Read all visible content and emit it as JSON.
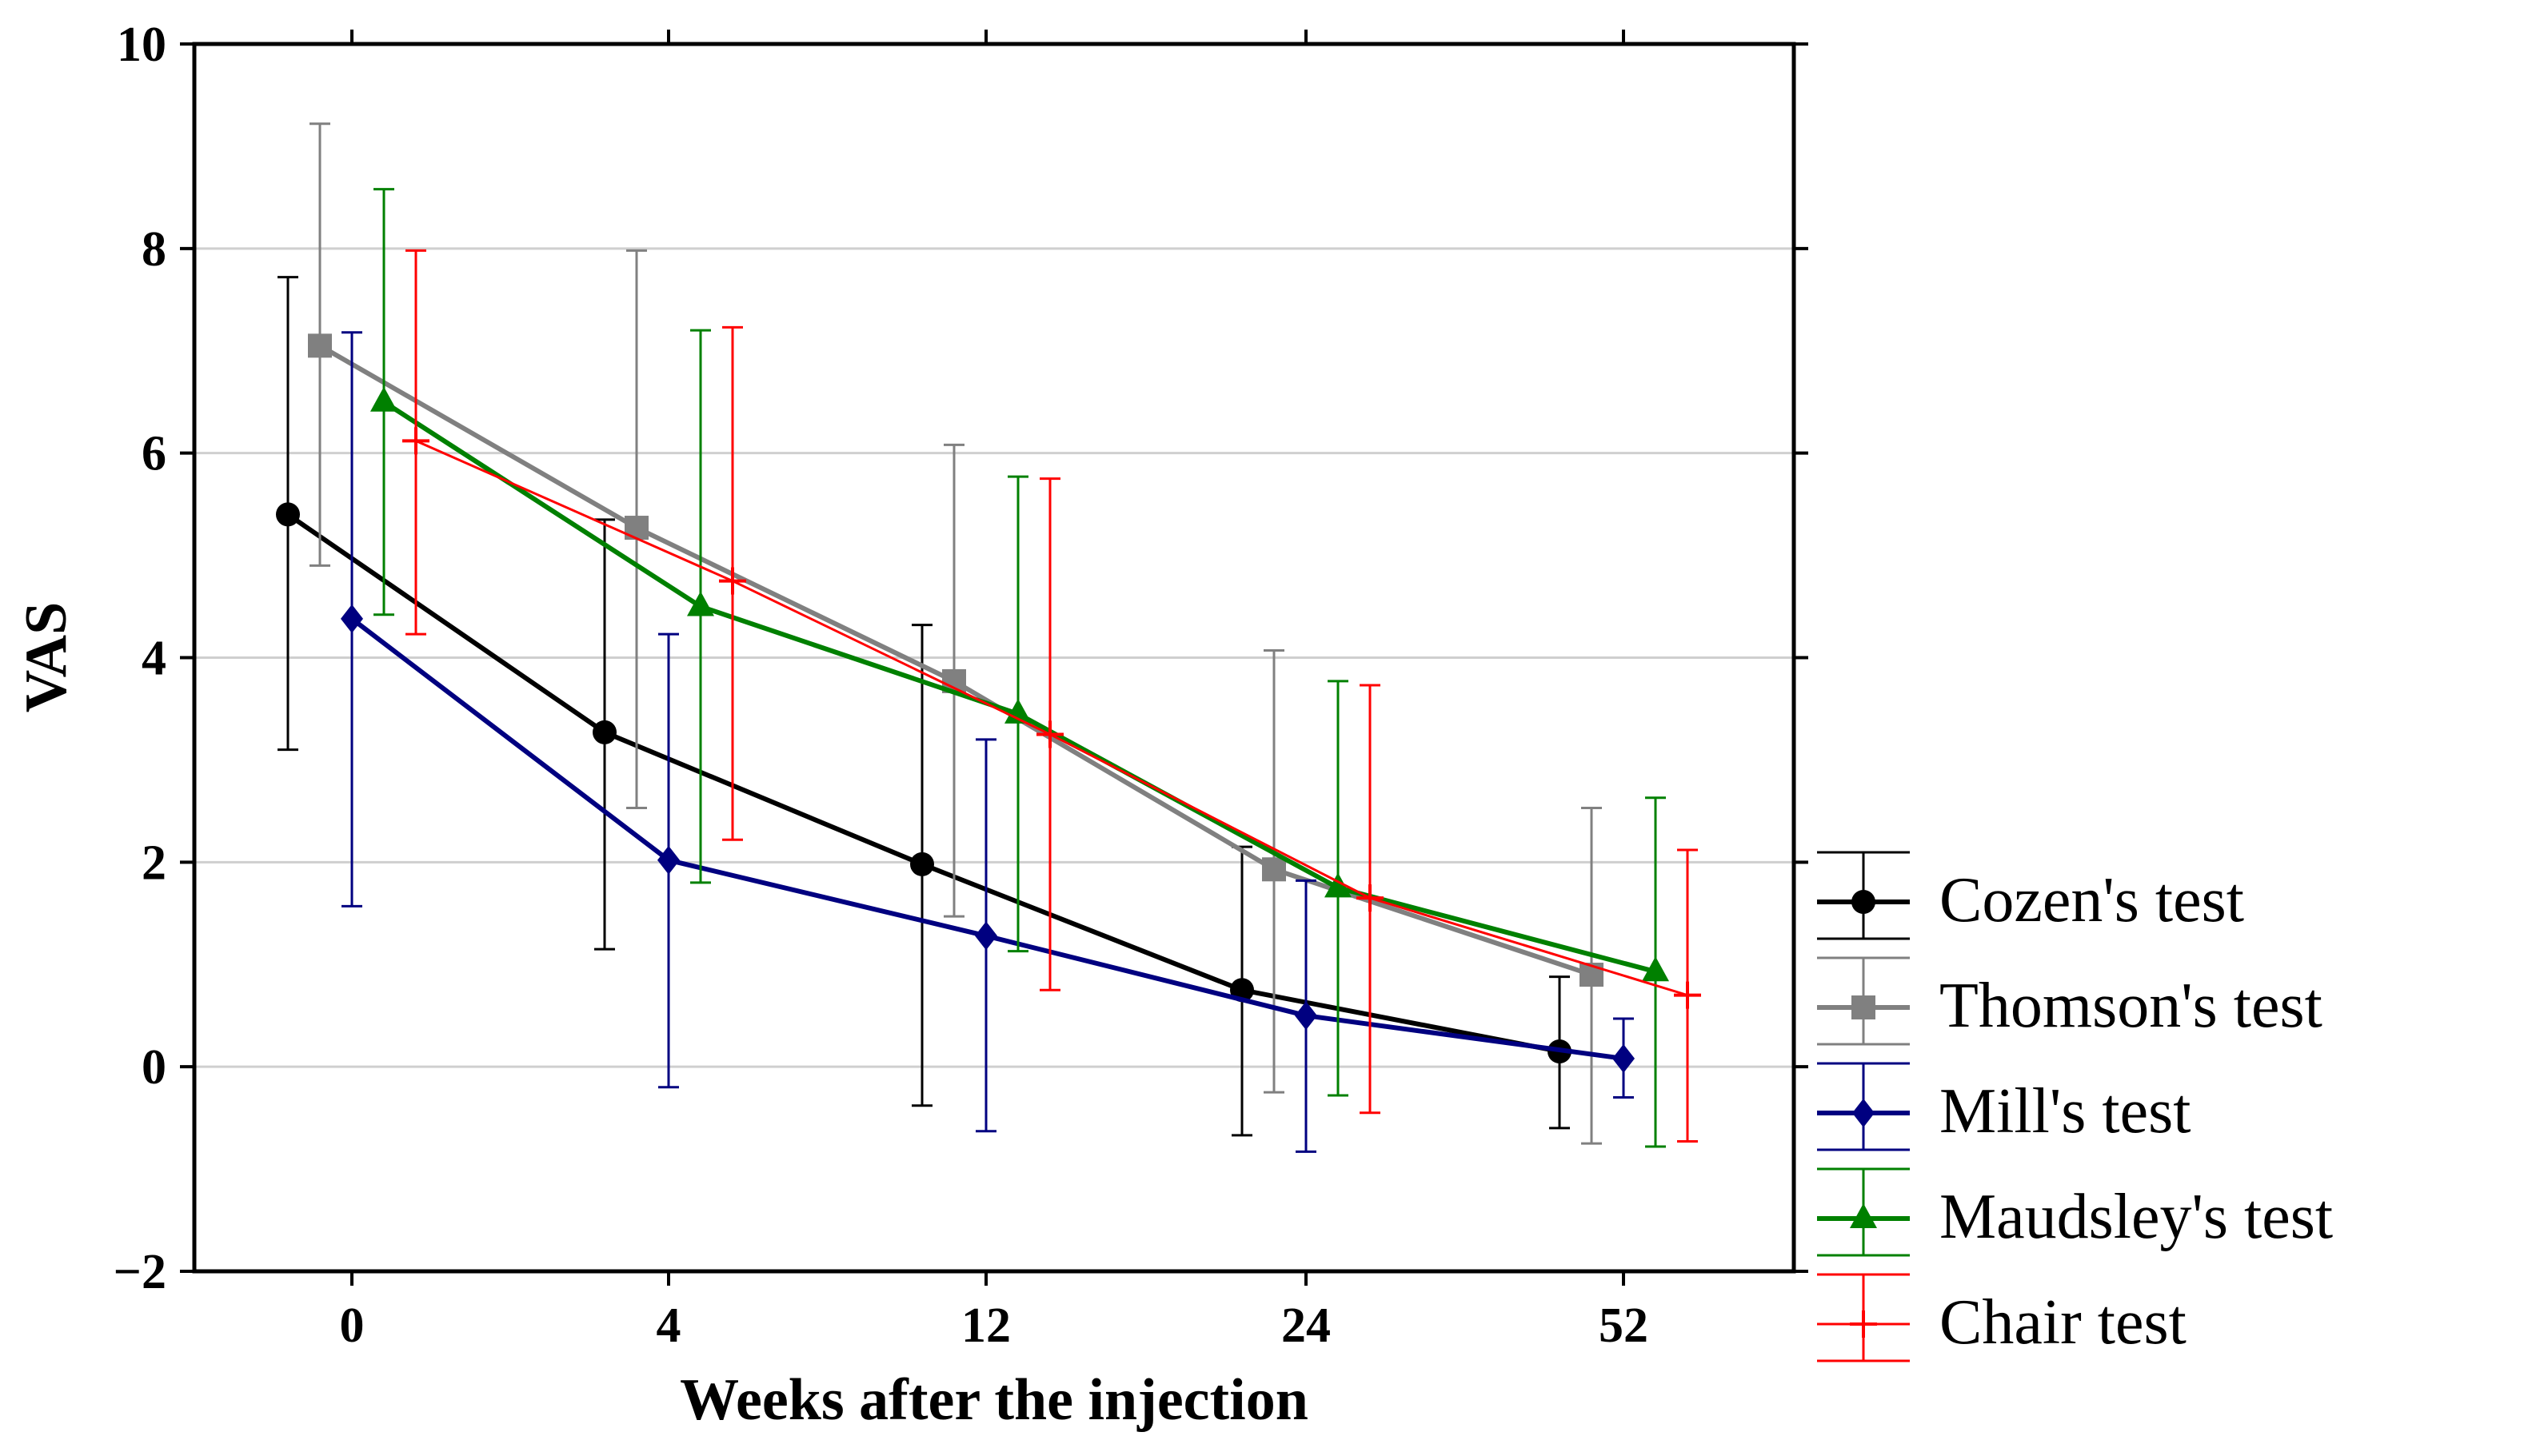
{
  "chart_data": {
    "type": "line",
    "title": "",
    "xlabel": "Weeks after the injection",
    "ylabel": "VAS",
    "categories": [
      "0",
      "4",
      "12",
      "24",
      "52"
    ],
    "ylim": [
      -2,
      10
    ],
    "yticks": [
      "−2",
      "0",
      "2",
      "4",
      "6",
      "8",
      "10"
    ],
    "ytick_values": [
      -2,
      0,
      2,
      4,
      6,
      8,
      10
    ],
    "grid": "horizontal",
    "legend_position": "right-bottom",
    "series": [
      {
        "name": "Cozen's test",
        "color": "#000000",
        "marker": "circle",
        "values": [
          5.4,
          3.27,
          1.98,
          0.75,
          0.15
        ],
        "lower": [
          3.1,
          1.15,
          -0.38,
          -0.67,
          -0.6
        ],
        "upper": [
          7.72,
          5.35,
          4.32,
          2.15,
          0.88
        ]
      },
      {
        "name": "Thomson's test",
        "color": "#808080",
        "marker": "square",
        "values": [
          7.05,
          5.27,
          3.77,
          1.93,
          0.9
        ],
        "lower": [
          4.9,
          2.53,
          1.47,
          -0.25,
          -0.75
        ],
        "upper": [
          9.22,
          7.98,
          6.08,
          4.07,
          2.53
        ]
      },
      {
        "name": "Mill's test",
        "color": "#000080",
        "marker": "diamond",
        "values": [
          4.38,
          2.02,
          1.28,
          0.5,
          0.08
        ],
        "lower": [
          1.57,
          -0.2,
          -0.63,
          -0.83,
          -0.3
        ],
        "upper": [
          7.18,
          4.23,
          3.2,
          1.82,
          0.47
        ]
      },
      {
        "name": "Maudsley's test",
        "color": "#008000",
        "marker": "triangle",
        "values": [
          6.5,
          4.5,
          3.45,
          1.75,
          0.93
        ],
        "lower": [
          4.42,
          1.8,
          1.13,
          -0.28,
          -0.78
        ],
        "upper": [
          8.58,
          7.2,
          5.77,
          3.77,
          2.63
        ]
      },
      {
        "name": "Chair test",
        "color": "#ff0000",
        "marker": "plus",
        "values": [
          6.12,
          4.75,
          3.25,
          1.65,
          0.7
        ],
        "lower": [
          4.23,
          2.22,
          0.75,
          -0.45,
          -0.73
        ],
        "upper": [
          7.98,
          7.23,
          5.75,
          3.73,
          2.12
        ]
      }
    ]
  }
}
